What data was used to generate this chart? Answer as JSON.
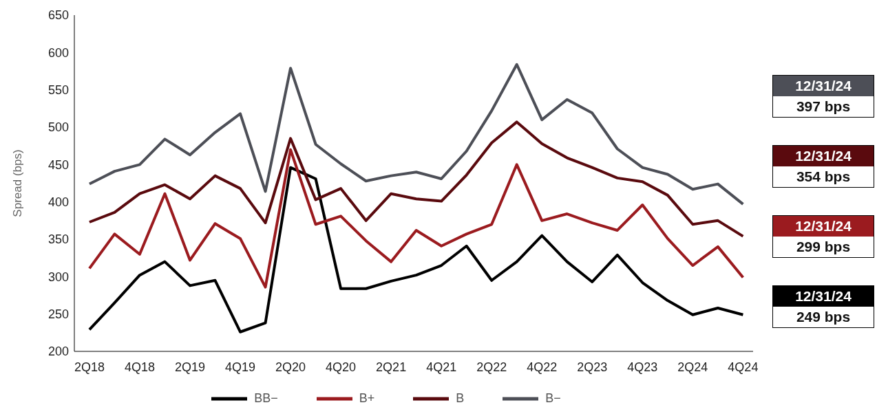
{
  "chart_data": {
    "type": "line",
    "ylabel": "Spread (bps)",
    "categories": [
      "2Q18",
      null,
      "4Q18",
      null,
      "2Q19",
      null,
      "4Q19",
      null,
      "2Q20",
      null,
      "4Q20",
      null,
      "2Q21",
      null,
      "4Q21",
      null,
      "2Q22",
      null,
      "4Q22",
      null,
      "2Q23",
      null,
      "4Q23",
      null,
      "2Q24",
      null,
      "4Q24"
    ],
    "series": [
      {
        "name": "BB−",
        "color": "#000000",
        "values": [
          229,
          265,
          302,
          320,
          288,
          295,
          226,
          238,
          446,
          431,
          284,
          284,
          294,
          302,
          315,
          341,
          295,
          320,
          355,
          320,
          293,
          329,
          292,
          268,
          249,
          258,
          249
        ]
      },
      {
        "name": "B+",
        "color": "#9b1b1f",
        "values": [
          311,
          357,
          330,
          411,
          322,
          371,
          351,
          286,
          470,
          370,
          381,
          348,
          320,
          362,
          341,
          357,
          370,
          450,
          375,
          384,
          372,
          362,
          396,
          351,
          315,
          340,
          299
        ]
      },
      {
        "name": "B",
        "color": "#5a0a0e",
        "values": [
          373,
          386,
          411,
          423,
          404,
          435,
          418,
          372,
          485,
          403,
          418,
          375,
          411,
          404,
          401,
          436,
          479,
          507,
          478,
          459,
          446,
          432,
          427,
          409,
          370,
          375,
          354
        ]
      },
      {
        "name": "B−",
        "color": "#4d4f57",
        "values": [
          424,
          441,
          450,
          484,
          463,
          493,
          518,
          414,
          579,
          477,
          451,
          428,
          435,
          440,
          431,
          468,
          522,
          584,
          510,
          537,
          519,
          471,
          446,
          437,
          417,
          424,
          397
        ]
      }
    ],
    "ylim": [
      200,
      650
    ],
    "yticks": [
      200,
      250,
      300,
      350,
      400,
      450,
      500,
      550,
      600,
      650
    ],
    "grid": false,
    "legend": "bottom",
    "marker": "none",
    "line_style": "solid",
    "annotations": [
      "12/31/24",
      "397 bps",
      "12/31/24",
      "354 bps",
      "12/31/24",
      "299 bps",
      "12/31/24",
      "249 bps"
    ]
  }
}
